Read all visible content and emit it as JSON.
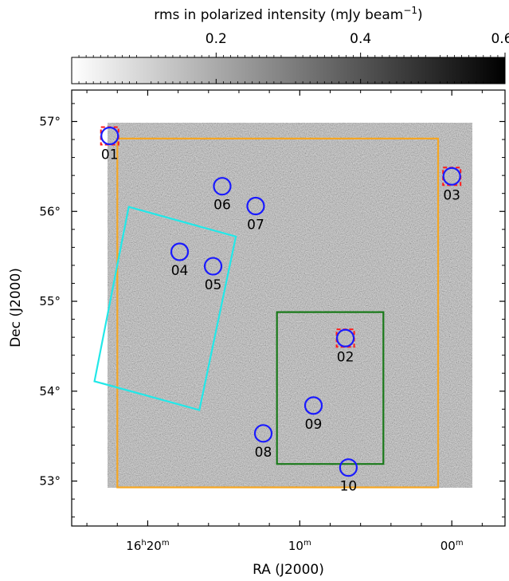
{
  "chart_data": {
    "type": "image",
    "xlabel": "RA (J2000)",
    "ylabel": "Dec (J2000)",
    "colorbar": {
      "label": "rms in polarized intensity (mJy beam",
      "label_exponent": "−1",
      "label_close": ")",
      "range": [
        0,
        0.6
      ],
      "colormap": "gray_r",
      "ticks": [
        {
          "value": 0.2,
          "label": "0.2"
        },
        {
          "value": 0.4,
          "label": "0.4"
        },
        {
          "value": 0.6,
          "label": "0.6"
        }
      ]
    },
    "ra_ticks": [
      {
        "ra_min": 20,
        "h": "16",
        "m": "20"
      },
      {
        "ra_min": 10,
        "h": "",
        "m": "10"
      },
      {
        "ra_min": 0,
        "h": "",
        "m": "00"
      }
    ],
    "dec_ticks": [
      {
        "value": 57,
        "label": "57°"
      },
      {
        "value": 56,
        "label": "56°"
      },
      {
        "value": 55,
        "label": "55°"
      },
      {
        "value": 54,
        "label": "54°"
      },
      {
        "value": 53,
        "label": "53°"
      }
    ],
    "axis_ranges": {
      "ra_min": [
        25.0,
        -3.5
      ],
      "dec": [
        52.5,
        57.35
      ]
    },
    "image_extent": {
      "ra_min": [
        20.0,
        -2.0
      ],
      "dec": [
        52.92,
        56.97
      ]
    },
    "fields": [
      {
        "id": "01",
        "ra_min": 22.5,
        "dec": 56.84,
        "flag": true
      },
      {
        "id": "02",
        "ra_min": 7.0,
        "dec": 54.59,
        "flag": true
      },
      {
        "id": "03",
        "ra_min": 0.0,
        "dec": 56.39,
        "flag": true
      },
      {
        "id": "04",
        "ra_min": 17.9,
        "dec": 55.55,
        "flag": false
      },
      {
        "id": "05",
        "ra_min": 15.7,
        "dec": 55.39,
        "flag": false
      },
      {
        "id": "06",
        "ra_min": 15.1,
        "dec": 56.28,
        "flag": false
      },
      {
        "id": "07",
        "ra_min": 12.9,
        "dec": 56.06,
        "flag": false
      },
      {
        "id": "08",
        "ra_min": 12.4,
        "dec": 53.53,
        "flag": false
      },
      {
        "id": "09",
        "ra_min": 9.1,
        "dec": 53.84,
        "flag": false
      },
      {
        "id": "10",
        "ra_min": 6.8,
        "dec": 53.15,
        "flag": false
      }
    ],
    "regions": [
      {
        "name": "orange",
        "color": "#f5a623",
        "points": [
          [
            22.0,
            56.81
          ],
          [
            0.9,
            56.81
          ],
          [
            0.9,
            52.93
          ],
          [
            22.0,
            52.93
          ]
        ]
      },
      {
        "name": "green",
        "color": "#1a7a1a",
        "points": [
          [
            11.5,
            54.88
          ],
          [
            4.5,
            54.88
          ],
          [
            4.5,
            53.19
          ],
          [
            11.5,
            53.19
          ]
        ]
      },
      {
        "name": "cyan",
        "color": "#22e8e8",
        "points": [
          [
            21.25,
            56.05
          ],
          [
            14.2,
            55.72
          ],
          [
            16.6,
            53.79
          ],
          [
            23.5,
            54.11
          ]
        ]
      }
    ],
    "colors": {
      "circle": "#1a1aff",
      "square": "#ff1a1a"
    }
  }
}
